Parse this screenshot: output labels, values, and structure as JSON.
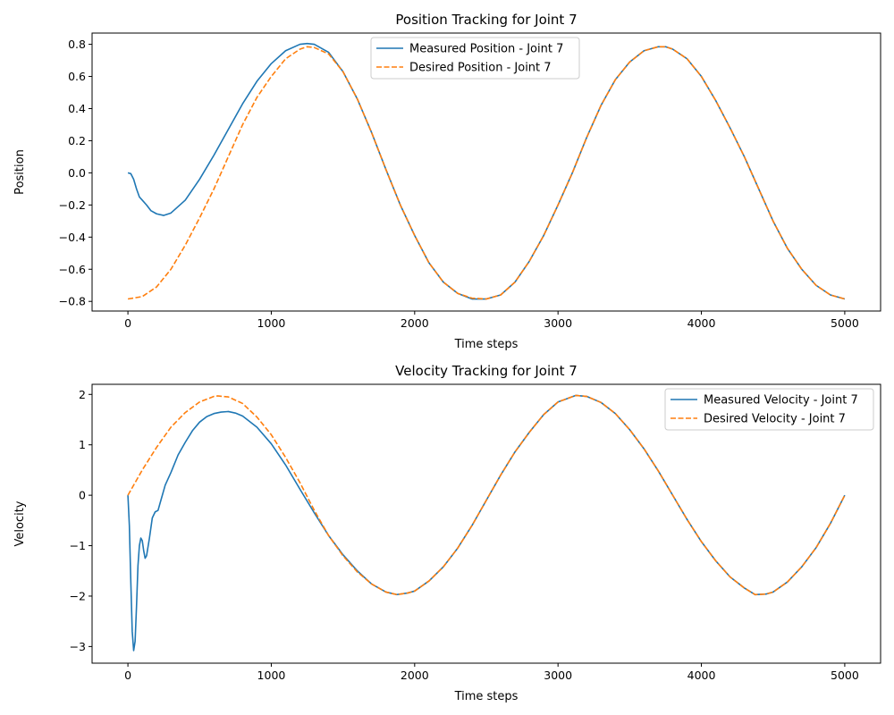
{
  "chart_data": [
    {
      "type": "line",
      "title": "Position Tracking for Joint 7",
      "xlabel": "Time steps",
      "ylabel": "Position",
      "xlim": [
        -250,
        5250
      ],
      "ylim": [
        -0.86,
        0.87
      ],
      "xticks": [
        0,
        1000,
        2000,
        3000,
        4000,
        5000
      ],
      "yticks": [
        -0.8,
        -0.6,
        -0.4,
        -0.2,
        0.0,
        0.2,
        0.4,
        0.6,
        0.8
      ],
      "ytick_labels": [
        "−0.8",
        "−0.6",
        "−0.4",
        "−0.2",
        "0.0",
        "0.2",
        "0.4",
        "0.6",
        "0.8"
      ],
      "grid": false,
      "legend": "top-center",
      "series": [
        {
          "name": "Measured Position - Joint 7",
          "color": "#1f77b4",
          "style": "solid",
          "x": [
            0,
            20,
            40,
            60,
            80,
            100,
            130,
            160,
            200,
            250,
            300,
            400,
            500,
            600,
            700,
            800,
            900,
            1000,
            1100,
            1200,
            1250,
            1300,
            1400,
            1500,
            1600,
            1700,
            1800,
            1900,
            2000,
            2100,
            2200,
            2300,
            2400,
            2500,
            2600,
            2700,
            2800,
            2900,
            3000,
            3100,
            3200,
            3300,
            3400,
            3500,
            3600,
            3700,
            3750,
            3800,
            3900,
            4000,
            4100,
            4200,
            4300,
            4400,
            4500,
            4600,
            4700,
            4800,
            4900,
            5000
          ],
          "y": [
            0.0,
            -0.005,
            -0.04,
            -0.1,
            -0.15,
            -0.17,
            -0.2,
            -0.235,
            -0.255,
            -0.265,
            -0.25,
            -0.17,
            -0.04,
            0.11,
            0.27,
            0.43,
            0.57,
            0.68,
            0.76,
            0.8,
            0.805,
            0.8,
            0.75,
            0.63,
            0.46,
            0.25,
            0.02,
            -0.2,
            -0.39,
            -0.56,
            -0.68,
            -0.75,
            -0.785,
            -0.785,
            -0.76,
            -0.68,
            -0.55,
            -0.39,
            -0.2,
            0.0,
            0.22,
            0.42,
            0.58,
            0.69,
            0.76,
            0.785,
            0.785,
            0.77,
            0.71,
            0.6,
            0.45,
            0.28,
            0.1,
            -0.1,
            -0.3,
            -0.47,
            -0.6,
            -0.7,
            -0.76,
            -0.785
          ]
        },
        {
          "name": "Desired Position - Joint 7",
          "color": "#ff7f0e",
          "style": "dashed",
          "x": [
            0,
            100,
            200,
            300,
            400,
            500,
            600,
            700,
            800,
            900,
            1000,
            1100,
            1200,
            1250,
            1300,
            1400,
            1500,
            1600,
            1700,
            1800,
            1900,
            2000,
            2100,
            2200,
            2300,
            2400,
            2500,
            2600,
            2700,
            2800,
            2900,
            3000,
            3100,
            3200,
            3300,
            3400,
            3500,
            3600,
            3700,
            3750,
            3800,
            3900,
            4000,
            4100,
            4200,
            4300,
            4400,
            4500,
            4600,
            4700,
            4800,
            4900,
            5000
          ],
          "y": [
            -0.785,
            -0.77,
            -0.71,
            -0.6,
            -0.45,
            -0.28,
            -0.1,
            0.1,
            0.3,
            0.47,
            0.6,
            0.71,
            0.77,
            0.785,
            0.78,
            0.74,
            0.63,
            0.46,
            0.25,
            0.02,
            -0.2,
            -0.39,
            -0.56,
            -0.68,
            -0.75,
            -0.78,
            -0.785,
            -0.76,
            -0.68,
            -0.55,
            -0.39,
            -0.2,
            0.0,
            0.22,
            0.42,
            0.58,
            0.69,
            0.76,
            0.785,
            0.785,
            0.77,
            0.71,
            0.6,
            0.45,
            0.28,
            0.1,
            -0.1,
            -0.3,
            -0.47,
            -0.6,
            -0.7,
            -0.76,
            -0.785
          ]
        }
      ]
    },
    {
      "type": "line",
      "title": "Velocity Tracking for Joint 7",
      "xlabel": "Time steps",
      "ylabel": "Velocity",
      "xlim": [
        -250,
        5250
      ],
      "ylim": [
        -3.33,
        2.2
      ],
      "xticks": [
        0,
        1000,
        2000,
        3000,
        4000,
        5000
      ],
      "yticks": [
        -3,
        -2,
        -1,
        0,
        1,
        2
      ],
      "ytick_labels": [
        "−3",
        "−2",
        "−1",
        "0",
        "1",
        "2"
      ],
      "grid": false,
      "legend": "top-right",
      "series": [
        {
          "name": "Measured Velocity - Joint 7",
          "color": "#1f77b4",
          "style": "solid",
          "x": [
            0,
            10,
            20,
            30,
            40,
            50,
            60,
            70,
            80,
            90,
            100,
            110,
            120,
            130,
            150,
            170,
            190,
            210,
            230,
            260,
            300,
            350,
            400,
            450,
            500,
            550,
            600,
            650,
            700,
            750,
            800,
            900,
            1000,
            1100,
            1200,
            1300,
            1400,
            1500,
            1600,
            1700,
            1800,
            1875,
            1950,
            2000,
            2100,
            2200,
            2300,
            2400,
            2500,
            2600,
            2700,
            2800,
            2900,
            3000,
            3125,
            3200,
            3300,
            3400,
            3500,
            3600,
            3700,
            3800,
            3900,
            4000,
            4100,
            4200,
            4300,
            4375,
            4450,
            4500,
            4600,
            4700,
            4800,
            4900,
            5000
          ],
          "y": [
            0.0,
            -0.6,
            -1.7,
            -2.7,
            -3.08,
            -2.9,
            -2.2,
            -1.4,
            -1.0,
            -0.85,
            -0.9,
            -1.1,
            -1.25,
            -1.2,
            -0.85,
            -0.45,
            -0.33,
            -0.3,
            -0.1,
            0.2,
            0.45,
            0.8,
            1.05,
            1.28,
            1.45,
            1.56,
            1.62,
            1.65,
            1.66,
            1.63,
            1.57,
            1.35,
            1.02,
            0.6,
            0.12,
            -0.35,
            -0.8,
            -1.18,
            -1.5,
            -1.76,
            -1.92,
            -1.97,
            -1.94,
            -1.9,
            -1.7,
            -1.42,
            -1.05,
            -0.6,
            -0.1,
            0.4,
            0.86,
            1.25,
            1.6,
            1.85,
            1.98,
            1.96,
            1.84,
            1.62,
            1.3,
            0.92,
            0.48,
            0.0,
            -0.48,
            -0.92,
            -1.3,
            -1.62,
            -1.84,
            -1.97,
            -1.96,
            -1.92,
            -1.72,
            -1.42,
            -1.04,
            -0.56,
            0.0
          ]
        },
        {
          "name": "Desired Velocity - Joint 7",
          "color": "#ff7f0e",
          "style": "dashed",
          "x": [
            0,
            100,
            200,
            300,
            400,
            500,
            600,
            625,
            700,
            800,
            900,
            1000,
            1100,
            1200,
            1300,
            1400,
            1500,
            1600,
            1700,
            1800,
            1875,
            1950,
            2000,
            2100,
            2200,
            2300,
            2400,
            2500,
            2600,
            2700,
            2800,
            2900,
            3000,
            3125,
            3200,
            3300,
            3400,
            3500,
            3600,
            3700,
            3800,
            3900,
            4000,
            4100,
            4200,
            4300,
            4375,
            4450,
            4500,
            4600,
            4700,
            4800,
            4900,
            5000
          ],
          "y": [
            0.0,
            0.5,
            0.95,
            1.35,
            1.64,
            1.85,
            1.96,
            1.97,
            1.95,
            1.82,
            1.55,
            1.2,
            0.75,
            0.25,
            -0.3,
            -0.8,
            -1.2,
            -1.52,
            -1.76,
            -1.92,
            -1.97,
            -1.94,
            -1.9,
            -1.7,
            -1.42,
            -1.05,
            -0.6,
            -0.1,
            0.4,
            0.86,
            1.25,
            1.6,
            1.85,
            1.98,
            1.96,
            1.84,
            1.62,
            1.3,
            0.92,
            0.48,
            0.0,
            -0.48,
            -0.92,
            -1.3,
            -1.62,
            -1.84,
            -1.97,
            -1.96,
            -1.92,
            -1.72,
            -1.42,
            -1.04,
            -0.56,
            0.0
          ]
        }
      ]
    }
  ]
}
